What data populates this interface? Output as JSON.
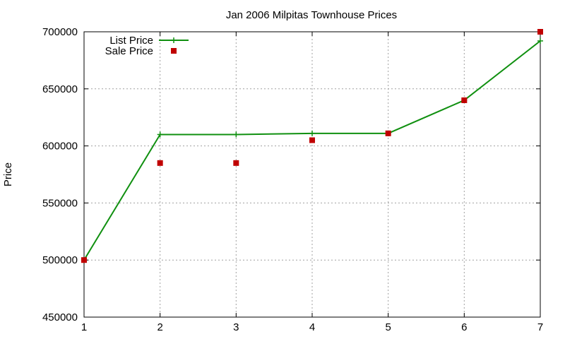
{
  "chart_data": {
    "type": "line",
    "title": "Jan 2006 Milpitas Townhouse Prices",
    "xlabel": "",
    "ylabel": "Price",
    "xlim": [
      1,
      7
    ],
    "ylim": [
      450000,
      700000
    ],
    "x_ticks": [
      1,
      2,
      3,
      4,
      5,
      6,
      7
    ],
    "y_ticks": [
      450000,
      500000,
      550000,
      600000,
      650000,
      700000
    ],
    "grid": true,
    "legend_position": "top-left",
    "series": [
      {
        "name": "List Price",
        "style": "line-points",
        "color": "#109010",
        "x": [
          1,
          2,
          3,
          4,
          5,
          6,
          7
        ],
        "values": [
          500000,
          610000,
          610000,
          611000,
          611000,
          640000,
          692000
        ]
      },
      {
        "name": "Sale Price",
        "style": "points",
        "color": "#c00000",
        "x": [
          1,
          2,
          3,
          4,
          5,
          6,
          7
        ],
        "values": [
          500000,
          585000,
          585000,
          605000,
          611000,
          640000,
          700000
        ]
      }
    ]
  }
}
